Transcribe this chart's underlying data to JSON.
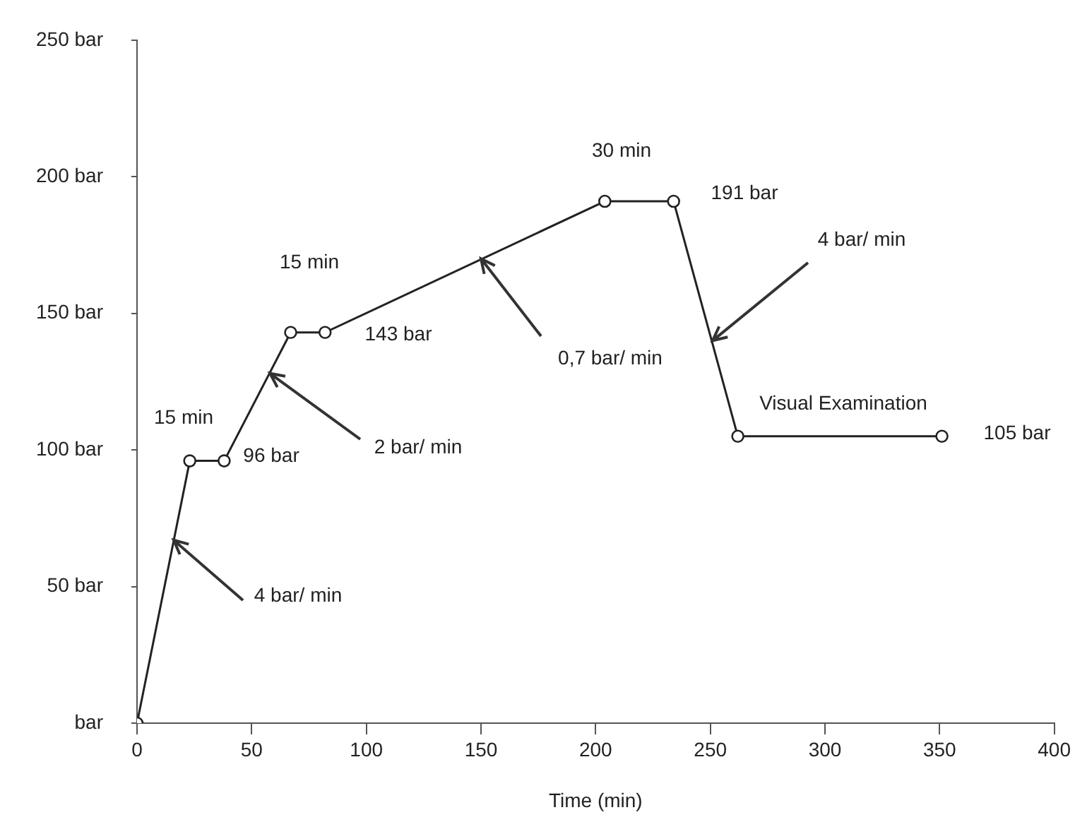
{
  "chart_data": {
    "type": "line",
    "xlabel": "Time (min)",
    "x": [
      0,
      23,
      38,
      67,
      82,
      204,
      234,
      262,
      351
    ],
    "series": [
      {
        "color": "#222222",
        "values": [
          0,
          96,
          96,
          143,
          143,
          191,
          191,
          105,
          105
        ]
      }
    ],
    "xlim": [
      0,
      400
    ],
    "xticks": [
      0,
      50,
      100,
      150,
      200,
      250,
      300,
      350,
      400
    ],
    "ylim": [
      0,
      250
    ],
    "yticks": [
      {
        "value": 0,
        "label": "bar"
      },
      {
        "value": 50,
        "label": "50 bar"
      },
      {
        "value": 100,
        "label": "100 bar"
      },
      {
        "value": 150,
        "label": "150 bar"
      },
      {
        "value": 200,
        "label": "200 bar"
      },
      {
        "value": 250,
        "label": "250 bar"
      }
    ],
    "grid": false,
    "legend": false,
    "marker": "circle",
    "line_style": "solid",
    "annotations": [
      "15 min",
      "96 bar",
      {
        "text": "4 bar/ min",
        "x": 16,
        "y": 67
      },
      {
        "text": "2 bar/ min",
        "x": 58,
        "y": 128
      },
      "15 min",
      "143 bar",
      {
        "text": "0,7 bar/ min",
        "x": 150,
        "y": 170
      },
      "30 min",
      "191 bar",
      {
        "text": "4 bar/ min",
        "x": 251,
        "y": 140
      },
      "Visual Examination",
      "105 bar"
    ]
  }
}
